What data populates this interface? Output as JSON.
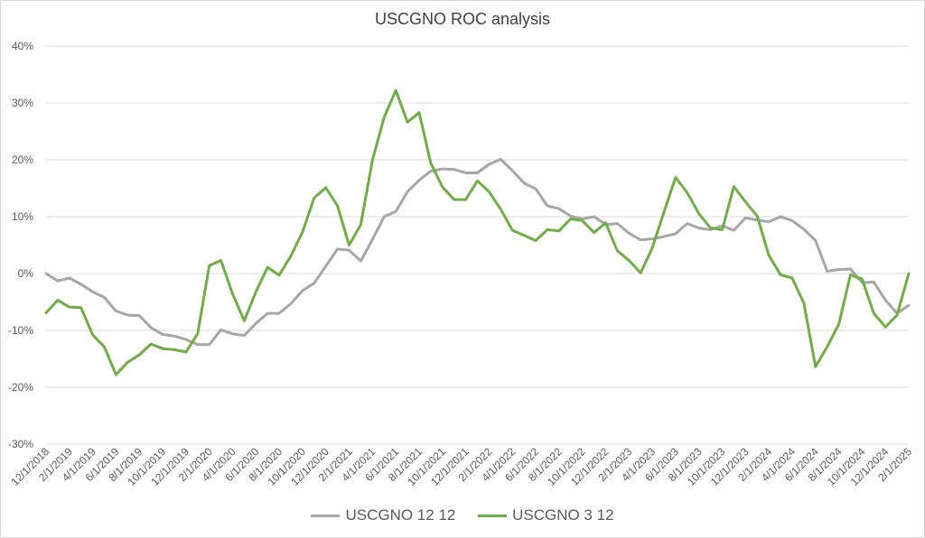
{
  "chart_data": {
    "type": "line",
    "title": "USCGNO ROC analysis",
    "ylim": [
      -30,
      40
    ],
    "ytick_step": 10,
    "ytick_suffix": "%",
    "grid": true,
    "legend": "bottom",
    "x": [
      "12/1/2018",
      "1/1/2019",
      "2/1/2019",
      "3/1/2019",
      "4/1/2019",
      "5/1/2019",
      "6/1/2019",
      "7/1/2019",
      "8/1/2019",
      "9/1/2019",
      "10/1/2019",
      "11/1/2019",
      "12/1/2019",
      "1/1/2020",
      "2/1/2020",
      "3/1/2020",
      "4/1/2020",
      "5/1/2020",
      "6/1/2020",
      "7/1/2020",
      "8/1/2020",
      "9/1/2020",
      "10/1/2020",
      "11/1/2020",
      "12/1/2020",
      "1/1/2021",
      "2/1/2021",
      "3/1/2021",
      "4/1/2021",
      "5/1/2021",
      "6/1/2021",
      "7/1/2021",
      "8/1/2021",
      "9/1/2021",
      "10/1/2021",
      "11/1/2021",
      "12/1/2021",
      "1/1/2022",
      "2/1/2022",
      "3/1/2022",
      "4/1/2022",
      "5/1/2022",
      "6/1/2022",
      "7/1/2022",
      "8/1/2022",
      "9/1/2022",
      "10/1/2022",
      "11/1/2022",
      "12/1/2022",
      "1/1/2023",
      "2/1/2023",
      "3/1/2023",
      "4/1/2023",
      "5/1/2023",
      "6/1/2023",
      "7/1/2023",
      "8/1/2023",
      "9/1/2023",
      "10/1/2023",
      "11/1/2023",
      "12/1/2023",
      "1/1/2024",
      "2/1/2024",
      "3/1/2024",
      "4/1/2024",
      "5/1/2024",
      "6/1/2024",
      "7/1/2024",
      "8/1/2024",
      "9/1/2024",
      "10/1/2024",
      "11/1/2024",
      "12/1/2024",
      "1/1/2025",
      "2/1/2025"
    ],
    "x_tick_labels": [
      "12/1/2018",
      "2/1/2019",
      "4/1/2019",
      "6/1/2019",
      "8/1/2019",
      "10/1/2019",
      "12/1/2019",
      "2/1/2020",
      "4/1/2020",
      "6/1/2020",
      "8/1/2020",
      "10/1/2020",
      "12/1/2020",
      "2/1/2021",
      "4/1/2021",
      "6/1/2021",
      "8/1/2021",
      "10/1/2021",
      "12/1/2021",
      "2/1/2022",
      "4/1/2022",
      "6/1/2022",
      "8/1/2022",
      "10/1/2022",
      "12/1/2022",
      "2/1/2023",
      "4/1/2023",
      "6/1/2023",
      "8/1/2023",
      "10/1/2023",
      "12/1/2023",
      "2/1/2024",
      "4/1/2024",
      "6/1/2024",
      "8/1/2024",
      "10/1/2024",
      "12/1/2024",
      "2/1/2025"
    ],
    "series": [
      {
        "name": "USCGNO 12 12",
        "color": "#a6a6a6",
        "values": [
          0.0,
          -1.3,
          -0.8,
          -1.9,
          -3.2,
          -4.2,
          -6.6,
          -7.3,
          -7.4,
          -9.5,
          -10.7,
          -11.0,
          -11.6,
          -12.5,
          -12.5,
          -9.9,
          -10.6,
          -10.9,
          -8.8,
          -7.0,
          -7.0,
          -5.3,
          -3.0,
          -1.7,
          1.3,
          4.3,
          4.1,
          2.2,
          6.0,
          10.0,
          10.9,
          14.4,
          16.4,
          18.0,
          18.4,
          18.3,
          17.7,
          17.7,
          19.2,
          20.1,
          18.1,
          15.9,
          14.9,
          11.9,
          11.4,
          10.1,
          9.6,
          10.0,
          8.6,
          8.8,
          7.1,
          5.9,
          6.1,
          6.5,
          7.0,
          8.8,
          8.0,
          7.7,
          8.4,
          7.6,
          9.8,
          9.4,
          9.1,
          10.0,
          9.3,
          7.8,
          5.8,
          0.4,
          0.7,
          0.8,
          -1.6,
          -1.5,
          -4.7,
          -7.0,
          -5.6
        ]
      },
      {
        "name": "USCGNO 3 12",
        "color": "#70ad47",
        "values": [
          -6.9,
          -4.7,
          -5.9,
          -6.0,
          -10.8,
          -12.9,
          -17.8,
          -15.6,
          -14.3,
          -12.4,
          -13.2,
          -13.4,
          -13.8,
          -10.6,
          1.4,
          2.3,
          -3.6,
          -8.3,
          -3.2,
          1.1,
          -0.3,
          3.1,
          7.3,
          13.3,
          15.1,
          11.9,
          5.0,
          8.6,
          20.0,
          27.5,
          32.2,
          26.6,
          28.3,
          19.4,
          15.2,
          13.0,
          13.0,
          16.3,
          14.4,
          11.3,
          7.6,
          6.7,
          5.8,
          7.7,
          7.5,
          9.6,
          9.3,
          7.2,
          8.9,
          4.0,
          2.3,
          0.1,
          4.5,
          10.8,
          16.9,
          14.2,
          10.5,
          8.0,
          7.7,
          15.3,
          12.6,
          10.1,
          3.2,
          -0.2,
          -0.8,
          -5.2,
          -16.4,
          -12.9,
          -8.9,
          -0.2,
          -1.0,
          -7.0,
          -9.4,
          -7.3,
          0.0
        ]
      }
    ]
  }
}
